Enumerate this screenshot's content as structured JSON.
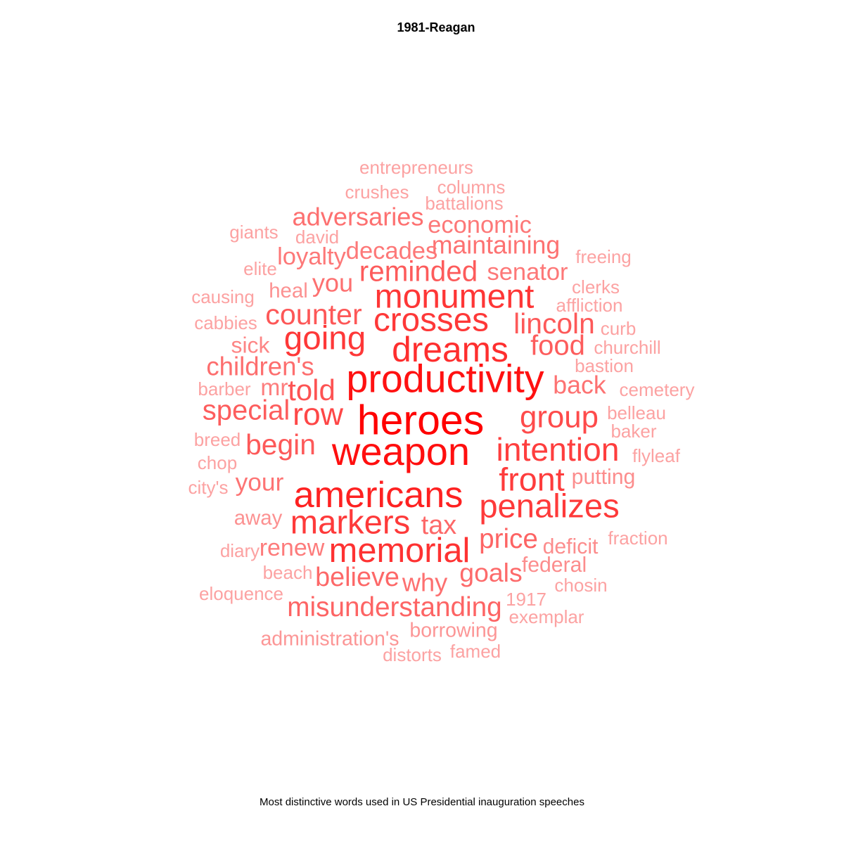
{
  "chart_data": {
    "type": "wordcloud",
    "title": "1981-Reagan",
    "caption": "Most distinctive words used in US Presidential inauguration speeches",
    "color_scale": {
      "high": "#ff0000",
      "low": "#fca2a2"
    },
    "words": [
      {
        "text": "heroes",
        "weight": 1.0
      },
      {
        "text": "weapon",
        "weight": 0.93
      },
      {
        "text": "productivity",
        "weight": 0.92
      },
      {
        "text": "americans",
        "weight": 0.84
      },
      {
        "text": "dreams",
        "weight": 0.78
      },
      {
        "text": "memorial",
        "weight": 0.76
      },
      {
        "text": "monument",
        "weight": 0.74
      },
      {
        "text": "crosses",
        "weight": 0.73
      },
      {
        "text": "going",
        "weight": 0.73
      },
      {
        "text": "markers",
        "weight": 0.72
      },
      {
        "text": "penalizes",
        "weight": 0.72
      },
      {
        "text": "front",
        "weight": 0.71
      },
      {
        "text": "intention",
        "weight": 0.7
      },
      {
        "text": "row",
        "weight": 0.66
      },
      {
        "text": "group",
        "weight": 0.64
      },
      {
        "text": "told",
        "weight": 0.6
      },
      {
        "text": "counter",
        "weight": 0.58
      },
      {
        "text": "lincoln",
        "weight": 0.57
      },
      {
        "text": "begin",
        "weight": 0.57
      },
      {
        "text": "reminded",
        "weight": 0.56
      },
      {
        "text": "food",
        "weight": 0.55
      },
      {
        "text": "special",
        "weight": 0.55
      },
      {
        "text": "misunderstanding",
        "weight": 0.52
      },
      {
        "text": "price",
        "weight": 0.52
      },
      {
        "text": "tax",
        "weight": 0.5
      },
      {
        "text": "believe",
        "weight": 0.5
      },
      {
        "text": "goals",
        "weight": 0.49
      },
      {
        "text": "children's",
        "weight": 0.47
      },
      {
        "text": "why",
        "weight": 0.46
      },
      {
        "text": "adversaries",
        "weight": 0.46
      },
      {
        "text": "you",
        "weight": 0.46
      },
      {
        "text": "maintaining",
        "weight": 0.45
      },
      {
        "text": "back",
        "weight": 0.45
      },
      {
        "text": "your",
        "weight": 0.44
      },
      {
        "text": "economic",
        "weight": 0.42
      },
      {
        "text": "senator",
        "weight": 0.42
      },
      {
        "text": "decades",
        "weight": 0.42
      },
      {
        "text": "loyalty",
        "weight": 0.42
      },
      {
        "text": "renew",
        "weight": 0.41
      },
      {
        "text": "mr",
        "weight": 0.4
      },
      {
        "text": "sick",
        "weight": 0.36
      },
      {
        "text": "federal",
        "weight": 0.32
      },
      {
        "text": "deficit",
        "weight": 0.32
      },
      {
        "text": "putting",
        "weight": 0.32
      },
      {
        "text": "heal",
        "weight": 0.3
      },
      {
        "text": "away",
        "weight": 0.3
      },
      {
        "text": "borrowing",
        "weight": 0.28
      },
      {
        "text": "administration's",
        "weight": 0.28
      },
      {
        "text": "chosin",
        "weight": 0.22
      },
      {
        "text": "affliction",
        "weight": 0.22
      },
      {
        "text": "clerks",
        "weight": 0.22
      },
      {
        "text": "1917",
        "weight": 0.22
      },
      {
        "text": "exemplar",
        "weight": 0.22
      },
      {
        "text": "beach",
        "weight": 0.22
      },
      {
        "text": "distorts",
        "weight": 0.22
      },
      {
        "text": "famed",
        "weight": 0.22
      },
      {
        "text": "fraction",
        "weight": 0.22
      },
      {
        "text": "flyleaf",
        "weight": 0.22
      },
      {
        "text": "baker",
        "weight": 0.22
      },
      {
        "text": "belleau",
        "weight": 0.22
      },
      {
        "text": "cemetery",
        "weight": 0.22
      },
      {
        "text": "bastion",
        "weight": 0.22
      },
      {
        "text": "churchill",
        "weight": 0.22
      },
      {
        "text": "curb",
        "weight": 0.22
      },
      {
        "text": "freeing",
        "weight": 0.22
      },
      {
        "text": "battalions",
        "weight": 0.22
      },
      {
        "text": "columns",
        "weight": 0.22
      },
      {
        "text": "crushes",
        "weight": 0.22
      },
      {
        "text": "entrepreneurs",
        "weight": 0.22
      },
      {
        "text": "david",
        "weight": 0.22
      },
      {
        "text": "giants",
        "weight": 0.22
      },
      {
        "text": "elite",
        "weight": 0.22
      },
      {
        "text": "causing",
        "weight": 0.22
      },
      {
        "text": "cabbies",
        "weight": 0.22
      },
      {
        "text": "barber",
        "weight": 0.22
      },
      {
        "text": "breed",
        "weight": 0.22
      },
      {
        "text": "chop",
        "weight": 0.22
      },
      {
        "text": "city's",
        "weight": 0.22
      },
      {
        "text": "diary",
        "weight": 0.22
      },
      {
        "text": "eloquence",
        "weight": 0.22
      }
    ]
  }
}
